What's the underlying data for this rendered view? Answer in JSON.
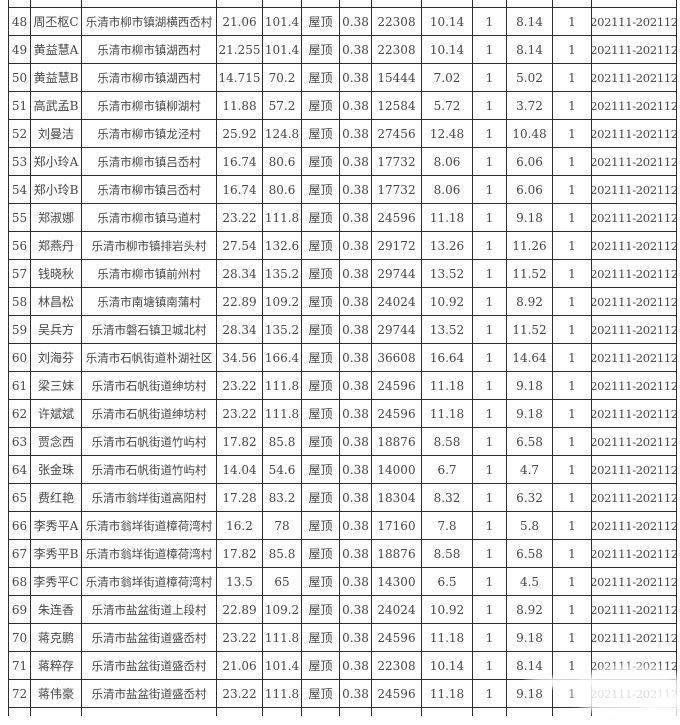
{
  "page": {
    "background_color": "#fefefe",
    "grid_color": "#2e2e2e",
    "text_color": "#474747"
  },
  "table": {
    "roof_type_label": "屋顶",
    "rate_value": "0.38",
    "period_value": "202111-202112",
    "rows": [
      [
        "48",
        "周丕枢C",
        "乐清市柳市镇湖横西岙村",
        "21.06",
        "101.4",
        "屋顶",
        "0.38",
        "22308",
        "10.14",
        "1",
        "8.14",
        "1",
        "202111-202112"
      ],
      [
        "49",
        "黄益慧A",
        "乐清市柳市镇湖西村",
        "21.255",
        "101.4",
        "屋顶",
        "0.38",
        "22308",
        "10.14",
        "1",
        "8.14",
        "1",
        "202111-202112"
      ],
      [
        "50",
        "黄益慧B",
        "乐清市柳市镇湖西村",
        "14.715",
        "70.2",
        "屋顶",
        "0.38",
        "15444",
        "7.02",
        "1",
        "5.02",
        "1",
        "202111-202112"
      ],
      [
        "51",
        "高武孟B",
        "乐清市柳市镇柳湖村",
        "11.88",
        "57.2",
        "屋顶",
        "0.38",
        "12584",
        "5.72",
        "1",
        "3.72",
        "1",
        "202111-202112"
      ],
      [
        "52",
        "刘曼洁",
        "乐清市柳市镇龙泾村",
        "25.92",
        "124.8",
        "屋顶",
        "0.38",
        "27456",
        "12.48",
        "1",
        "10.48",
        "1",
        "202111-202112"
      ],
      [
        "53",
        "郑小玲A",
        "乐清市柳市镇吕岙村",
        "16.74",
        "80.6",
        "屋顶",
        "0.38",
        "17732",
        "8.06",
        "1",
        "6.06",
        "1",
        "202111-202112"
      ],
      [
        "54",
        "郑小玲B",
        "乐清市柳市镇吕岙村",
        "16.74",
        "80.6",
        "屋顶",
        "0.38",
        "17732",
        "8.06",
        "1",
        "6.06",
        "1",
        "202111-202112"
      ],
      [
        "55",
        "郑淑娜",
        "乐清市柳市镇马道村",
        "23.22",
        "111.8",
        "屋顶",
        "0.38",
        "24596",
        "11.18",
        "1",
        "9.18",
        "1",
        "202111-202112"
      ],
      [
        "56",
        "郑燕丹",
        "乐清市柳市镇排岩头村",
        "27.54",
        "132.6",
        "屋顶",
        "0.38",
        "29172",
        "13.26",
        "1",
        "11.26",
        "1",
        "202111-202112"
      ],
      [
        "57",
        "钱晓秋",
        "乐清市柳市镇前州村",
        "28.34",
        "135.2",
        "屋顶",
        "0.38",
        "29744",
        "13.52",
        "1",
        "11.52",
        "1",
        "202111-202112"
      ],
      [
        "58",
        "林昌松",
        "乐清市南塘镇南蒲村",
        "22.89",
        "109.2",
        "屋顶",
        "0.38",
        "24024",
        "10.92",
        "1",
        "8.92",
        "1",
        "202111-202112"
      ],
      [
        "59",
        "吴兵方",
        "乐清市磐石镇卫城北村",
        "28.34",
        "135.2",
        "屋顶",
        "0.38",
        "29744",
        "13.52",
        "1",
        "11.52",
        "1",
        "202111-202112"
      ],
      [
        "60",
        "刘海芬",
        "乐清市石帆街道朴湖社区",
        "34.56",
        "166.4",
        "屋顶",
        "0.38",
        "36608",
        "16.64",
        "1",
        "14.64",
        "1",
        "202111-202112"
      ],
      [
        "61",
        "梁三妹",
        "乐清市石帆街道绅坊村",
        "23.22",
        "111.8",
        "屋顶",
        "0.38",
        "24596",
        "11.18",
        "1",
        "9.18",
        "1",
        "202111-202112"
      ],
      [
        "62",
        "许斌斌",
        "乐清市石帆街道绅坊村",
        "23.22",
        "111.8",
        "屋顶",
        "0.38",
        "24596",
        "11.18",
        "1",
        "9.18",
        "1",
        "202111-202112"
      ],
      [
        "63",
        "贾念西",
        "乐清市石帆街道竹屿村",
        "17.82",
        "85.8",
        "屋顶",
        "0.38",
        "18876",
        "8.58",
        "1",
        "6.58",
        "1",
        "202111-202112"
      ],
      [
        "64",
        "张金珠",
        "乐清市石帆街道竹屿村",
        "14.04",
        "54.6",
        "屋顶",
        "0.38",
        "14000",
        "6.7",
        "1",
        "4.7",
        "1",
        "202111-202112"
      ],
      [
        "65",
        "费红艳",
        "乐清市翁垟街道高阳村",
        "17.28",
        "83.2",
        "屋顶",
        "0.38",
        "18304",
        "8.32",
        "1",
        "6.32",
        "1",
        "202111-202112"
      ],
      [
        "66",
        "李秀平A",
        "乐清市翁垟街道樟荷湾村",
        "16.2",
        "78",
        "屋顶",
        "0.38",
        "17160",
        "7.8",
        "1",
        "5.8",
        "1",
        "202111-202112"
      ],
      [
        "67",
        "李秀平B",
        "乐清市翁垟街道樟荷湾村",
        "17.82",
        "85.8",
        "屋顶",
        "0.38",
        "18876",
        "8.58",
        "1",
        "6.58",
        "1",
        "202111-202112"
      ],
      [
        "68",
        "李秀平C",
        "乐清市翁垟街道樟荷湾村",
        "13.5",
        "65",
        "屋顶",
        "0.38",
        "14300",
        "6.5",
        "1",
        "4.5",
        "1",
        "202111-202112"
      ],
      [
        "69",
        "朱连香",
        "乐清市盐盆街道上段村",
        "22.89",
        "109.2",
        "屋顶",
        "0.38",
        "24024",
        "10.92",
        "1",
        "8.92",
        "1",
        "202111-202112"
      ],
      [
        "70",
        "蒋克鹏",
        "乐清市盐盆街道盛岙村",
        "23.22",
        "111.8",
        "屋顶",
        "0.38",
        "24596",
        "11.18",
        "1",
        "9.18",
        "1",
        "202111-202112"
      ],
      [
        "71",
        "蒋粹存",
        "乐清市盐盆街道盛岙村",
        "21.06",
        "101.4",
        "屋顶",
        "0.38",
        "22308",
        "10.14",
        "1",
        "8.14",
        "1",
        "202111-202112"
      ],
      [
        "72",
        "蒋伟豪",
        "乐清市盐盆街道盛岙村",
        "23.22",
        "111.8",
        "屋顶",
        "0.38",
        "24596",
        "11.18",
        "1",
        "9.18",
        "1",
        "202111-202112"
      ]
    ]
  }
}
